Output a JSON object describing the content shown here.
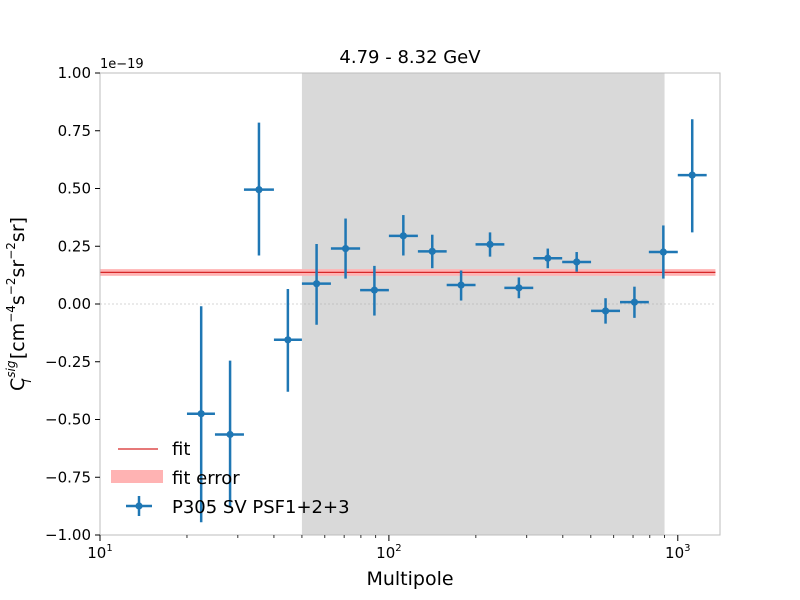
{
  "chart_data": {
    "type": "scatter",
    "title": "4.79 - 8.32 GeV",
    "xlabel": "Multipole",
    "ylabel": "C",
    "ylabel_sub": "l",
    "ylabel_sup": "sig",
    "ylabel_units": "[cm",
    "ylabel_units_parts": [
      "[cm",
      "−4",
      "s",
      "−2",
      "sr",
      "−2",
      "sr]"
    ],
    "xscale": "log",
    "xlim": [
      10,
      1400
    ],
    "ylim": [
      -1.0,
      1.0
    ],
    "y_scale_label": "1e−19",
    "x_ticks": [
      {
        "value": 10,
        "base": "10",
        "exp": "1"
      },
      {
        "value": 100,
        "base": "10",
        "exp": "2"
      },
      {
        "value": 1000,
        "base": "10",
        "exp": "3"
      }
    ],
    "y_ticks": [
      {
        "value": -1.0,
        "label": "−1.00"
      },
      {
        "value": -0.75,
        "label": "−0.75"
      },
      {
        "value": -0.5,
        "label": "−0.50"
      },
      {
        "value": -0.25,
        "label": "−0.25"
      },
      {
        "value": 0.0,
        "label": "0.00"
      },
      {
        "value": 0.25,
        "label": "0.25"
      },
      {
        "value": 0.5,
        "label": "0.50"
      },
      {
        "value": 0.75,
        "label": "0.75"
      },
      {
        "value": 1.0,
        "label": "1.00"
      }
    ],
    "shaded_region": {
      "x_start": 50,
      "x_end": 900,
      "color": "#d9d9d9"
    },
    "fit": {
      "value": 0.137,
      "error_low": 0.122,
      "error_high": 0.151,
      "x_start": 10,
      "x_end": 1350,
      "line_color": "#d62728",
      "band_color": "#ffb3b3"
    },
    "zero_line": {
      "value": 0.0,
      "x_start": 10,
      "x_end": 1350
    },
    "series": [
      {
        "name": "P305 SV PSF1+2+3",
        "color": "#1f77b4",
        "points": [
          {
            "x": 22.4,
            "y": -0.475,
            "x_lo": 20.0,
            "x_hi": 25.0,
            "y_lo": -0.945,
            "y_hi": -0.01
          },
          {
            "x": 28.2,
            "y": -0.565,
            "x_lo": 25.0,
            "x_hi": 31.5,
            "y_lo": -0.88,
            "y_hi": -0.245
          },
          {
            "x": 35.5,
            "y": 0.495,
            "x_lo": 31.5,
            "x_hi": 40.0,
            "y_lo": 0.21,
            "y_hi": 0.785
          },
          {
            "x": 44.7,
            "y": -0.155,
            "x_lo": 40.0,
            "x_hi": 50.0,
            "y_lo": -0.38,
            "y_hi": 0.065
          },
          {
            "x": 56.2,
            "y": 0.088,
            "x_lo": 50.0,
            "x_hi": 63.0,
            "y_lo": -0.09,
            "y_hi": 0.26
          },
          {
            "x": 70.8,
            "y": 0.24,
            "x_lo": 63.0,
            "x_hi": 79.5,
            "y_lo": 0.11,
            "y_hi": 0.37
          },
          {
            "x": 89.1,
            "y": 0.06,
            "x_lo": 79.5,
            "x_hi": 100.0,
            "y_lo": -0.05,
            "y_hi": 0.165
          },
          {
            "x": 112.2,
            "y": 0.295,
            "x_lo": 100.0,
            "x_hi": 126.0,
            "y_lo": 0.21,
            "y_hi": 0.385
          },
          {
            "x": 141.3,
            "y": 0.228,
            "x_lo": 126.0,
            "x_hi": 158.5,
            "y_lo": 0.155,
            "y_hi": 0.3
          },
          {
            "x": 177.8,
            "y": 0.082,
            "x_lo": 158.5,
            "x_hi": 199.5,
            "y_lo": 0.015,
            "y_hi": 0.145
          },
          {
            "x": 223.9,
            "y": 0.258,
            "x_lo": 199.5,
            "x_hi": 251.0,
            "y_lo": 0.205,
            "y_hi": 0.31
          },
          {
            "x": 281.8,
            "y": 0.07,
            "x_lo": 251.0,
            "x_hi": 316.0,
            "y_lo": 0.025,
            "y_hi": 0.115
          },
          {
            "x": 354.8,
            "y": 0.198,
            "x_lo": 316.0,
            "x_hi": 398.0,
            "y_lo": 0.155,
            "y_hi": 0.24
          },
          {
            "x": 446.7,
            "y": 0.182,
            "x_lo": 398.0,
            "x_hi": 501.0,
            "y_lo": 0.14,
            "y_hi": 0.225
          },
          {
            "x": 562.3,
            "y": -0.03,
            "x_lo": 501.0,
            "x_hi": 631.0,
            "y_lo": -0.085,
            "y_hi": 0.025
          },
          {
            "x": 707.9,
            "y": 0.008,
            "x_lo": 631.0,
            "x_hi": 794.0,
            "y_lo": -0.06,
            "y_hi": 0.075
          },
          {
            "x": 891.3,
            "y": 0.225,
            "x_lo": 794.0,
            "x_hi": 1000.0,
            "y_lo": 0.11,
            "y_hi": 0.34
          },
          {
            "x": 1122.0,
            "y": 0.558,
            "x_lo": 1000.0,
            "x_hi": 1259.0,
            "y_lo": 0.31,
            "y_hi": 0.8
          }
        ]
      }
    ],
    "legend": {
      "placement": "lower-left",
      "entries": [
        {
          "label": "fit",
          "kind": "line"
        },
        {
          "label": "fit error",
          "kind": "band"
        },
        {
          "label": "P305 SV PSF1+2+3",
          "kind": "errorbar"
        }
      ]
    }
  }
}
